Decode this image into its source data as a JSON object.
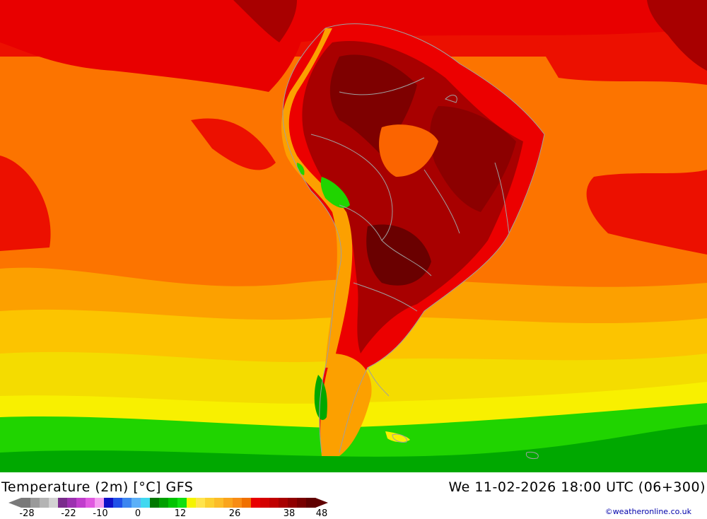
{
  "header": {
    "title": "Temperature (2m) [°C] GFS",
    "datetime": "We 11-02-2026 18:00 UTC (06+300)"
  },
  "footer": {
    "copyright": "©weatheronline.co.uk"
  },
  "legend": {
    "unit": "°C",
    "tick_labels": [
      "-28",
      "-22",
      "-10",
      "0",
      "12",
      "26",
      "38",
      "48"
    ],
    "colors": [
      "#7a7a7a",
      "#9a9a9a",
      "#b4b4b4",
      "#d2d2d2",
      "#7a2c8c",
      "#9c30b0",
      "#c03ccc",
      "#e058e0",
      "#f49cf0",
      "#1010c8",
      "#2050e8",
      "#3c86f0",
      "#5cb0f8",
      "#40d8f0",
      "#007800",
      "#00a000",
      "#00c400",
      "#10e010",
      "#f4f400",
      "#ffe44c",
      "#fcd030",
      "#fcbc28",
      "#faa41c",
      "#f88c14",
      "#f07000",
      "#e80000",
      "#d40000",
      "#c00000",
      "#a80000",
      "#900000",
      "#780000",
      "#600000"
    ]
  },
  "map": {
    "region": "South America",
    "field_colors": {
      "deep_red": "#7e0000",
      "dark_red": "#a80000",
      "red": "#ec0000",
      "red_orange": "#fb3c00",
      "orange": "#fc7400",
      "light_orange": "#fca000",
      "amber": "#fcc400",
      "yellow": "#f8f000",
      "green": "#20d400",
      "dark_green": "#00a800",
      "border": "#a0a0a0"
    }
  }
}
